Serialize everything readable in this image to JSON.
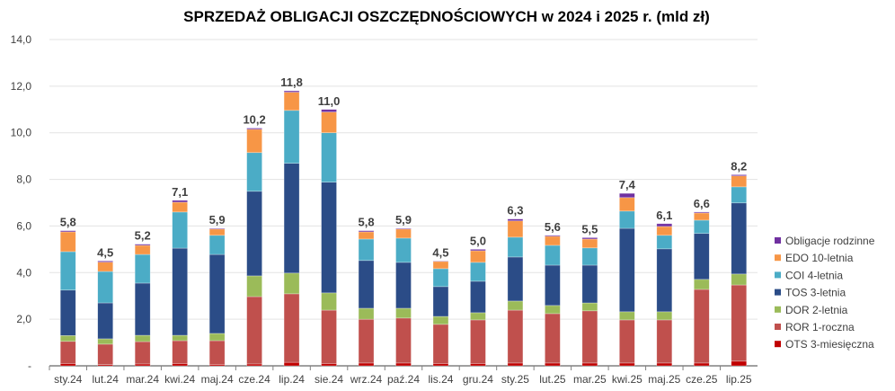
{
  "chart_data": {
    "type": "bar",
    "stacked": true,
    "title": "SPRZEDAŻ OBLIGACJI OSZCZĘDNOŚCIOWYCH w 2024 i 2025 r. (mld zł)",
    "xlabel": "",
    "ylabel": "",
    "ylim": [
      0,
      14
    ],
    "yticks": [
      "-",
      "2,0",
      "4,0",
      "6,0",
      "8,0",
      "10,0",
      "12,0",
      "14,0"
    ],
    "grid": true,
    "legend_position": "right",
    "categories": [
      "sty.24",
      "lut.24",
      "mar.24",
      "kwi.24",
      "maj.24",
      "cze.24",
      "lip.24",
      "sie.24",
      "wrz.24",
      "paź.24",
      "lis.24",
      "gru.24",
      "sty.25",
      "lut.25",
      "mar.25",
      "kwi.25",
      "maj.25",
      "cze.25",
      "lip.25"
    ],
    "totals": [
      "5,8",
      "4,5",
      "5,2",
      "7,1",
      "5,9",
      "10,2",
      "11,8",
      "11,0",
      "5,8",
      "5,9",
      "4,5",
      "5,0",
      "6,3",
      "5,6",
      "5,5",
      "7,4",
      "6,1",
      "6,6",
      "8,2"
    ],
    "series": [
      {
        "name": "OTS 3-miesięczna",
        "color": "#c00000",
        "values": [
          0.1,
          0.05,
          0.08,
          0.1,
          0.06,
          0.08,
          0.15,
          0.1,
          0.12,
          0.12,
          0.1,
          0.1,
          0.12,
          0.12,
          0.12,
          0.12,
          0.12,
          0.12,
          0.2
        ]
      },
      {
        "name": "ROR 1-roczna",
        "color": "#c0504d",
        "values": [
          0.95,
          0.88,
          0.96,
          0.98,
          1.02,
          2.89,
          2.94,
          2.29,
          1.88,
          1.93,
          1.68,
          1.87,
          2.27,
          2.12,
          2.24,
          1.85,
          1.85,
          3.16,
          3.27
        ]
      },
      {
        "name": "DOR 2-letnia",
        "color": "#9bbb59",
        "values": [
          0.25,
          0.23,
          0.27,
          0.23,
          0.31,
          0.89,
          0.89,
          0.74,
          0.47,
          0.42,
          0.34,
          0.31,
          0.39,
          0.35,
          0.34,
          0.35,
          0.35,
          0.43,
          0.47
        ]
      },
      {
        "name": "TOS 3-letnia",
        "color": "#2b4c87",
        "values": [
          1.95,
          1.54,
          2.24,
          3.74,
          3.39,
          3.63,
          4.71,
          4.75,
          2.05,
          1.97,
          1.28,
          1.35,
          1.89,
          1.73,
          1.62,
          3.58,
          2.7,
          1.97,
          3.05
        ]
      },
      {
        "name": "COI 4-letnia",
        "color": "#4bacc6",
        "values": [
          1.65,
          1.35,
          1.23,
          1.55,
          0.82,
          1.66,
          2.27,
          2.12,
          0.92,
          1.04,
          0.77,
          0.81,
          0.85,
          0.85,
          0.74,
          0.74,
          0.58,
          0.57,
          0.69
        ]
      },
      {
        "name": "EDO 10-letnia",
        "color": "#f79646",
        "values": [
          0.85,
          0.4,
          0.39,
          0.42,
          0.27,
          1.0,
          0.78,
          0.89,
          0.31,
          0.39,
          0.31,
          0.5,
          0.7,
          0.39,
          0.38,
          0.58,
          0.38,
          0.31,
          0.47
        ]
      },
      {
        "name": "Obligacje rodzinne",
        "color": "#7030a0",
        "values": [
          0.05,
          0.05,
          0.05,
          0.08,
          0.03,
          0.05,
          0.06,
          0.11,
          0.05,
          0.03,
          0.02,
          0.06,
          0.08,
          0.04,
          0.06,
          0.18,
          0.12,
          0.04,
          0.05
        ]
      }
    ]
  }
}
